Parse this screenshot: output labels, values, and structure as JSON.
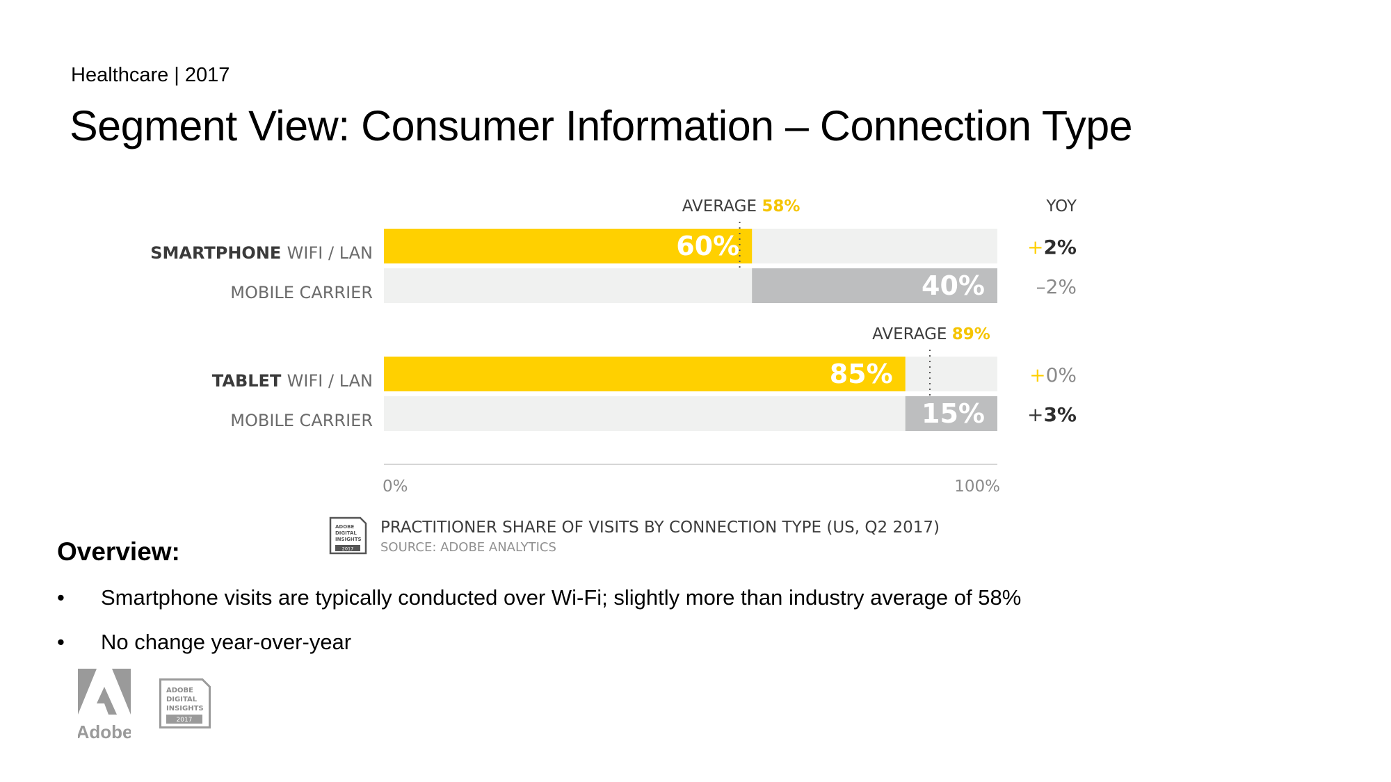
{
  "header": {
    "kicker": "Healthcare | 2017",
    "title": "Segment View: Consumer Information – Connection Type"
  },
  "chart_data": {
    "type": "bar",
    "orientation": "horizontal",
    "stacked": true,
    "xlim": [
      0,
      100
    ],
    "x_ticks": [
      "0%",
      "100%"
    ],
    "yoy_header": "YOY",
    "groups": [
      {
        "name": "SMARTPHONE",
        "average_label": "AVERAGE",
        "average_value": 58,
        "average_text": "58%",
        "rows": [
          {
            "label": "WIFI / LAN",
            "value": 60,
            "value_text": "60%",
            "yoy_sign": "+",
            "yoy_value": "2%",
            "yoy_bold": true,
            "color": "#ffd000"
          },
          {
            "label": "MOBILE CARRIER",
            "value": 40,
            "value_text": "40%",
            "yoy_sign": "–",
            "yoy_value": "2%",
            "yoy_bold": false,
            "color": "#bdbebf"
          }
        ]
      },
      {
        "name": "TABLET",
        "average_label": "AVERAGE",
        "average_value": 89,
        "average_text": "89%",
        "rows": [
          {
            "label": "WIFI / LAN",
            "value": 85,
            "value_text": "85%",
            "yoy_sign": "+",
            "yoy_value": "0%",
            "yoy_bold": false,
            "color": "#ffd000"
          },
          {
            "label": "MOBILE CARRIER",
            "value": 15,
            "value_text": "15%",
            "yoy_sign": "+",
            "yoy_value": "3%",
            "yoy_bold": true,
            "color": "#bdbebf"
          }
        ]
      }
    ],
    "caption": "PRACTITIONER SHARE OF VISITS BY CONNECTION TYPE (US, Q2 2017)",
    "source": "SOURCE: ADOBE ANALYTICS"
  },
  "badge": {
    "line1": "ADOBE",
    "line2": "DIGITAL",
    "line3": "INSIGHTS",
    "year": "2017"
  },
  "overview": {
    "heading": "Overview:",
    "bullet_char": "•",
    "bullets": [
      "Smartphone visits are typically conducted over Wi-Fi; slightly more than industry average of 58%",
      "No change year-over-year"
    ]
  },
  "logo": {
    "wordmark": "Adobe"
  },
  "colors": {
    "accent": "#ffd000",
    "average_text": "#f5c400",
    "gray_bar": "#bdbebf",
    "track": "#f0f1f0",
    "adobe_gray": "#9a9a9a"
  }
}
